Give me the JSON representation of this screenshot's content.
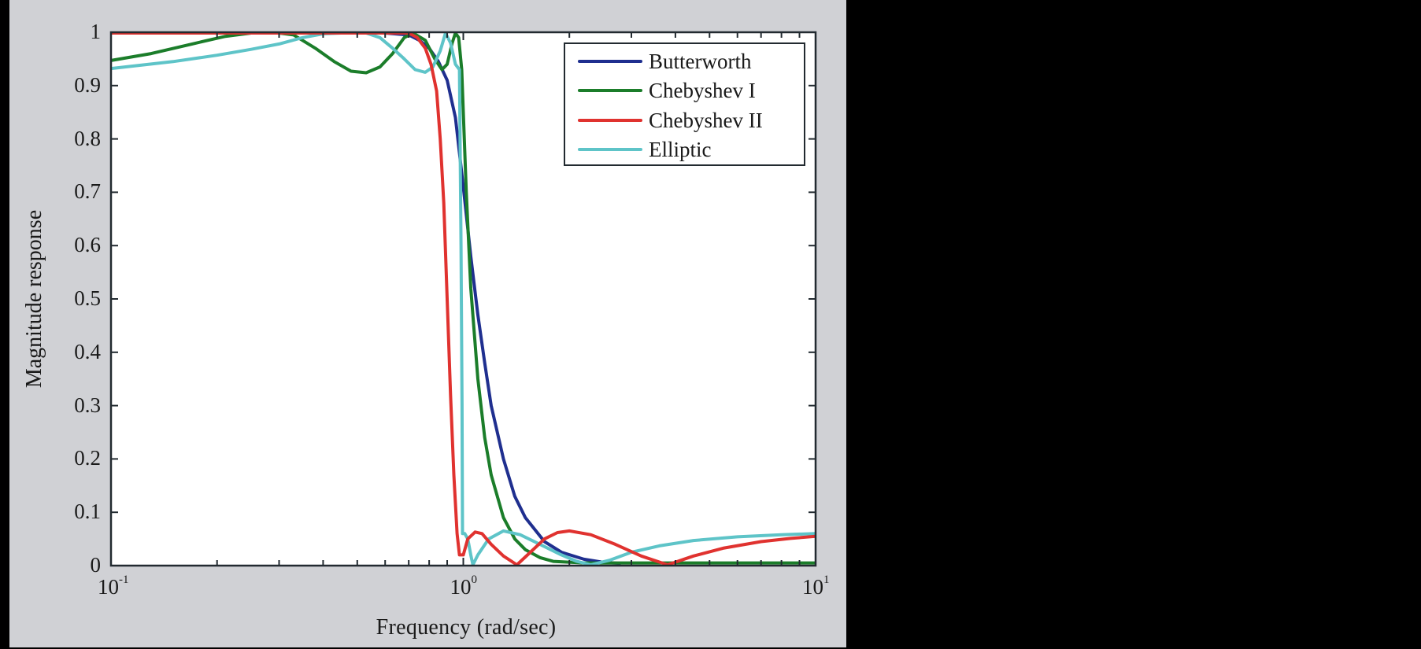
{
  "chart_data": {
    "type": "line",
    "title": "",
    "xlabel": "Frequency (rad/sec)",
    "ylabel": "Magnitude response",
    "xscale": "log",
    "xlim": [
      0.1,
      10
    ],
    "ylim": [
      0,
      1
    ],
    "x_ticks": [
      {
        "base": "10",
        "exp": "-1",
        "value": 0.1
      },
      {
        "base": "10",
        "exp": "0",
        "value": 1
      },
      {
        "base": "10",
        "exp": "1",
        "value": 10
      }
    ],
    "y_ticks": [
      "0",
      "0.1",
      "0.2",
      "0.3",
      "0.4",
      "0.5",
      "0.6",
      "0.7",
      "0.8",
      "0.9",
      "1"
    ],
    "grid": false,
    "legend_position": "upper right",
    "series": [
      {
        "name": "Butterworth",
        "color": "#1f2f8f",
        "points": [
          [
            0.1,
            1
          ],
          [
            0.6,
            1
          ],
          [
            0.7,
            0.995
          ],
          [
            0.75,
            0.985
          ],
          [
            0.8,
            0.97
          ],
          [
            0.85,
            0.945
          ],
          [
            0.9,
            0.91
          ],
          [
            0.95,
            0.84
          ],
          [
            1.0,
            0.71
          ],
          [
            1.05,
            0.58
          ],
          [
            1.1,
            0.47
          ],
          [
            1.15,
            0.38
          ],
          [
            1.2,
            0.3
          ],
          [
            1.3,
            0.2
          ],
          [
            1.4,
            0.13
          ],
          [
            1.5,
            0.09
          ],
          [
            1.7,
            0.045
          ],
          [
            1.9,
            0.025
          ],
          [
            2.2,
            0.012
          ],
          [
            2.5,
            0.006
          ],
          [
            2.8,
            0.004
          ]
        ]
      },
      {
        "name": "Chebyshev I",
        "color": "#1b7d2a",
        "points": [
          [
            0.1,
            0.947
          ],
          [
            0.13,
            0.96
          ],
          [
            0.17,
            0.978
          ],
          [
            0.21,
            0.992
          ],
          [
            0.25,
            1
          ],
          [
            0.3,
            1
          ],
          [
            0.33,
            0.995
          ],
          [
            0.38,
            0.97
          ],
          [
            0.43,
            0.945
          ],
          [
            0.48,
            0.927
          ],
          [
            0.53,
            0.924
          ],
          [
            0.58,
            0.935
          ],
          [
            0.63,
            0.96
          ],
          [
            0.68,
            0.99
          ],
          [
            0.72,
            1
          ],
          [
            0.78,
            0.985
          ],
          [
            0.83,
            0.95
          ],
          [
            0.87,
            0.93
          ],
          [
            0.9,
            0.94
          ],
          [
            0.93,
            0.98
          ],
          [
            0.95,
            1
          ],
          [
            0.97,
            0.99
          ],
          [
            0.99,
            0.93
          ],
          [
            1.0,
            0.85
          ],
          [
            1.02,
            0.7
          ],
          [
            1.05,
            0.52
          ],
          [
            1.1,
            0.35
          ],
          [
            1.15,
            0.24
          ],
          [
            1.2,
            0.17
          ],
          [
            1.3,
            0.09
          ],
          [
            1.4,
            0.05
          ],
          [
            1.5,
            0.03
          ],
          [
            1.65,
            0.015
          ],
          [
            1.8,
            0.008
          ],
          [
            2.2,
            0.005
          ],
          [
            10,
            0.005
          ]
        ]
      },
      {
        "name": "Chebyshev II",
        "color": "#e0322f",
        "points": [
          [
            0.1,
            1
          ],
          [
            0.7,
            1
          ],
          [
            0.74,
            0.99
          ],
          [
            0.78,
            0.97
          ],
          [
            0.81,
            0.94
          ],
          [
            0.84,
            0.89
          ],
          [
            0.86,
            0.8
          ],
          [
            0.88,
            0.68
          ],
          [
            0.9,
            0.5
          ],
          [
            0.92,
            0.32
          ],
          [
            0.94,
            0.17
          ],
          [
            0.96,
            0.06
          ],
          [
            0.975,
            0.02
          ],
          [
            1.0,
            0.02
          ],
          [
            1.03,
            0.05
          ],
          [
            1.08,
            0.063
          ],
          [
            1.13,
            0.06
          ],
          [
            1.2,
            0.04
          ],
          [
            1.3,
            0.018
          ],
          [
            1.42,
            0.0
          ],
          [
            1.55,
            0.025
          ],
          [
            1.7,
            0.05
          ],
          [
            1.85,
            0.062
          ],
          [
            2.0,
            0.065
          ],
          [
            2.3,
            0.058
          ],
          [
            2.7,
            0.04
          ],
          [
            3.2,
            0.018
          ],
          [
            3.8,
            0.0
          ],
          [
            4.5,
            0.018
          ],
          [
            5.5,
            0.033
          ],
          [
            7,
            0.045
          ],
          [
            8.5,
            0.051
          ],
          [
            10,
            0.055
          ]
        ]
      },
      {
        "name": "Elliptic",
        "color": "#5ec4c8",
        "points": [
          [
            0.1,
            0.932
          ],
          [
            0.15,
            0.945
          ],
          [
            0.2,
            0.957
          ],
          [
            0.25,
            0.968
          ],
          [
            0.3,
            0.978
          ],
          [
            0.35,
            0.99
          ],
          [
            0.4,
            0.997
          ],
          [
            0.45,
            1
          ],
          [
            0.53,
            1
          ],
          [
            0.58,
            0.99
          ],
          [
            0.63,
            0.97
          ],
          [
            0.68,
            0.95
          ],
          [
            0.73,
            0.93
          ],
          [
            0.78,
            0.925
          ],
          [
            0.82,
            0.935
          ],
          [
            0.86,
            0.965
          ],
          [
            0.89,
            1
          ],
          [
            0.92,
            0.98
          ],
          [
            0.95,
            0.94
          ],
          [
            0.975,
            0.93
          ],
          [
            0.985,
            0.6
          ],
          [
            0.992,
            0.3
          ],
          [
            0.995,
            0.06
          ],
          [
            1.01,
            0.06
          ],
          [
            1.03,
            0.05
          ],
          [
            1.05,
            0.02
          ],
          [
            1.065,
            0.0
          ],
          [
            1.1,
            0.02
          ],
          [
            1.18,
            0.05
          ],
          [
            1.3,
            0.065
          ],
          [
            1.45,
            0.058
          ],
          [
            1.65,
            0.04
          ],
          [
            1.9,
            0.02
          ],
          [
            2.1,
            0.008
          ],
          [
            2.3,
            0.0
          ],
          [
            2.6,
            0.01
          ],
          [
            3.0,
            0.025
          ],
          [
            3.6,
            0.037
          ],
          [
            4.5,
            0.047
          ],
          [
            6,
            0.054
          ],
          [
            8,
            0.058
          ],
          [
            10,
            0.06
          ]
        ]
      }
    ]
  },
  "axes": {
    "xlabel": "Frequency (rad/sec)",
    "ylabel": "Magnitude response"
  },
  "legend": {
    "items": [
      {
        "label": "Butterworth",
        "color": "#1f2f8f"
      },
      {
        "label": "Chebyshev I",
        "color": "#1b7d2a"
      },
      {
        "label": "Chebyshev II",
        "color": "#e0322f"
      },
      {
        "label": "Elliptic",
        "color": "#5ec4c8"
      }
    ]
  }
}
